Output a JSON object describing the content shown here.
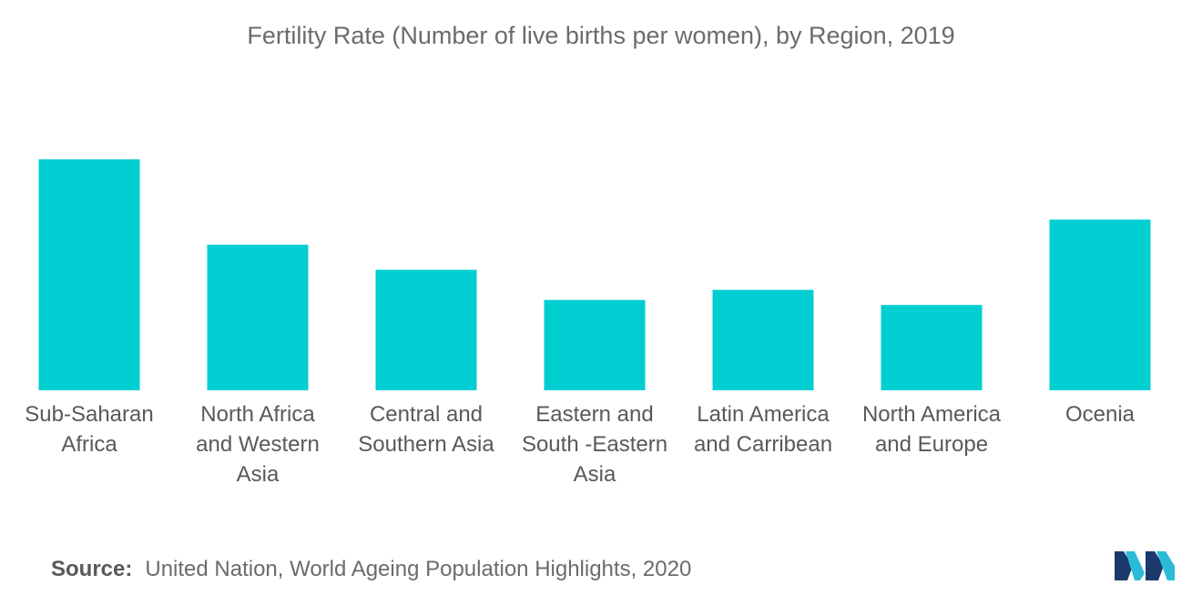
{
  "chart_data": {
    "type": "bar",
    "title": "Fertility Rate (Number of live births per women), by Region, 2019",
    "xlabel": "",
    "ylabel": "",
    "categories": [
      [
        "Sub-Saharan",
        "Africa"
      ],
      [
        "North Africa",
        "and Western",
        "Asia"
      ],
      [
        "Central and",
        "Southern Asia"
      ],
      [
        "Eastern and",
        "South -Eastern",
        "Asia"
      ],
      [
        "Latin America",
        "and Carribean"
      ],
      [
        "North America",
        "and Europe"
      ],
      [
        "Ocenia"
      ]
    ],
    "values": [
      4.6,
      2.9,
      2.4,
      1.8,
      2.0,
      1.7,
      3.4
    ],
    "ylim": [
      0,
      5.6
    ],
    "grid": false,
    "legend": "none",
    "bar_color": "#00CED1"
  },
  "source": {
    "label": "Source:",
    "text": "United Nation, World Ageing Population Highlights, 2020"
  },
  "logo": {
    "icon": "mordor-intelligence-logo-icon",
    "colors": [
      "#1b3a6b",
      "#2bbbd8"
    ]
  }
}
